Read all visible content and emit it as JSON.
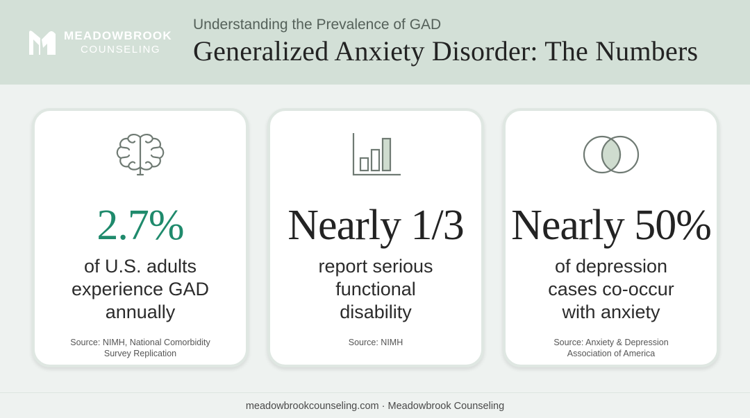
{
  "brand": {
    "line1": "MEADOWBROOK",
    "line2": "COUNSELING",
    "logo_icon": "stylized-m-icon"
  },
  "header": {
    "subtitle": "Understanding the Prevalence of GAD",
    "title": "Generalized Anxiety Disorder: The Numbers"
  },
  "colors": {
    "header_bg": "#d3e0d7",
    "accent": "#1f8a6c",
    "icon_stroke": "#6f7a73",
    "icon_fill": "#cfdccf"
  },
  "cards": [
    {
      "icon": "brain-icon",
      "stat": "2.7%",
      "desc": [
        "of U.S. adults",
        "experience GAD",
        "annually"
      ],
      "source": [
        "Source: NIMH, National Comorbidity",
        "Survey Replication"
      ]
    },
    {
      "icon": "bar-chart-icon",
      "stat": "Nearly 1/3",
      "desc": [
        "report serious",
        "functional",
        "disability"
      ],
      "source": [
        "Source: NIMH"
      ]
    },
    {
      "icon": "venn-diagram-icon",
      "stat": "Nearly 50%",
      "desc": [
        "of depression",
        "cases co-occur",
        "with anxiety"
      ],
      "source": [
        "Source: Anxiety & Depression",
        "Association of America"
      ]
    }
  ],
  "footer": {
    "text": "meadowbrookcounseling.com · Meadowbrook Counseling"
  }
}
